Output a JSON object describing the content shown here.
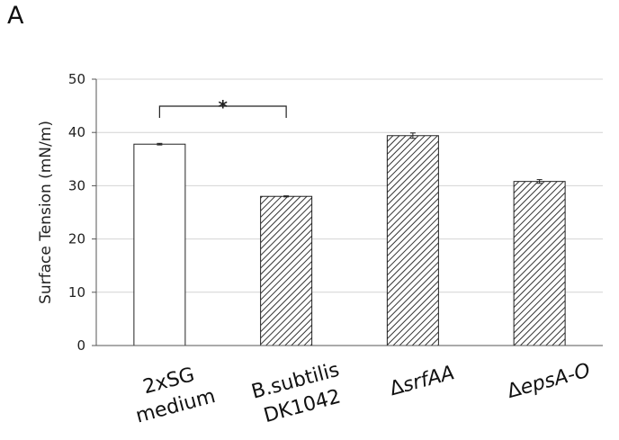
{
  "panel_label": "A",
  "chart_data": {
    "type": "bar",
    "categories": [
      {
        "lines": [
          "2xSG",
          "medium"
        ],
        "italic": false
      },
      {
        "lines": [
          "B.subtilis",
          "DK1042"
        ],
        "italic": false
      },
      {
        "lines": [
          "ΔsrfAA"
        ],
        "italic": true
      },
      {
        "lines": [
          "ΔepsA-O"
        ],
        "italic": true
      }
    ],
    "values": [
      37.8,
      28.0,
      39.4,
      30.8
    ],
    "errors": [
      0.15,
      0.1,
      0.5,
      0.35
    ],
    "fills": [
      "plain",
      "hatched",
      "hatched",
      "hatched"
    ],
    "ylabel": "Surface Tension (mN/m)",
    "ylim": [
      0,
      50
    ],
    "yticks": [
      0,
      10,
      20,
      30,
      40,
      50
    ],
    "grid": true,
    "significance": [
      {
        "from": 0,
        "to": 1,
        "label": "*"
      }
    ]
  }
}
